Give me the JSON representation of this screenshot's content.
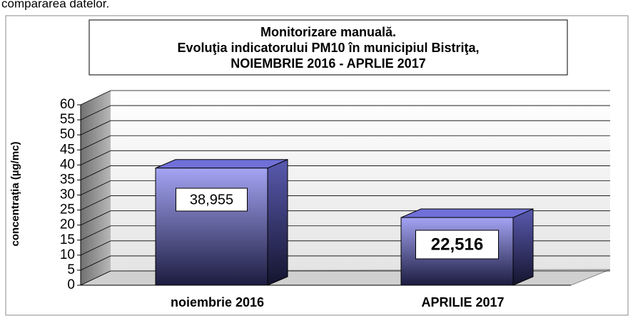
{
  "caption": "compararea datelor.",
  "chart_data": {
    "type": "bar3d",
    "title": [
      "Monitorizare manuală.",
      "Evoluţia indicatorului PM10 în municipiul Bistriţa,",
      "NOIEMBRIE  2016 - APRLIE 2017"
    ],
    "y_label": "concentraţia (µg/mc)",
    "categories": [
      "noiembrie 2016",
      "APRILIE 2017"
    ],
    "values": [
      38.955,
      22.516
    ],
    "value_labels": [
      "38,955",
      "22,516"
    ],
    "color": "#7070d8",
    "ylim": [
      0,
      60
    ],
    "yticks": [
      0,
      5,
      10,
      15,
      20,
      25,
      30,
      35,
      40,
      45,
      50,
      55,
      60
    ],
    "grid": true
  }
}
